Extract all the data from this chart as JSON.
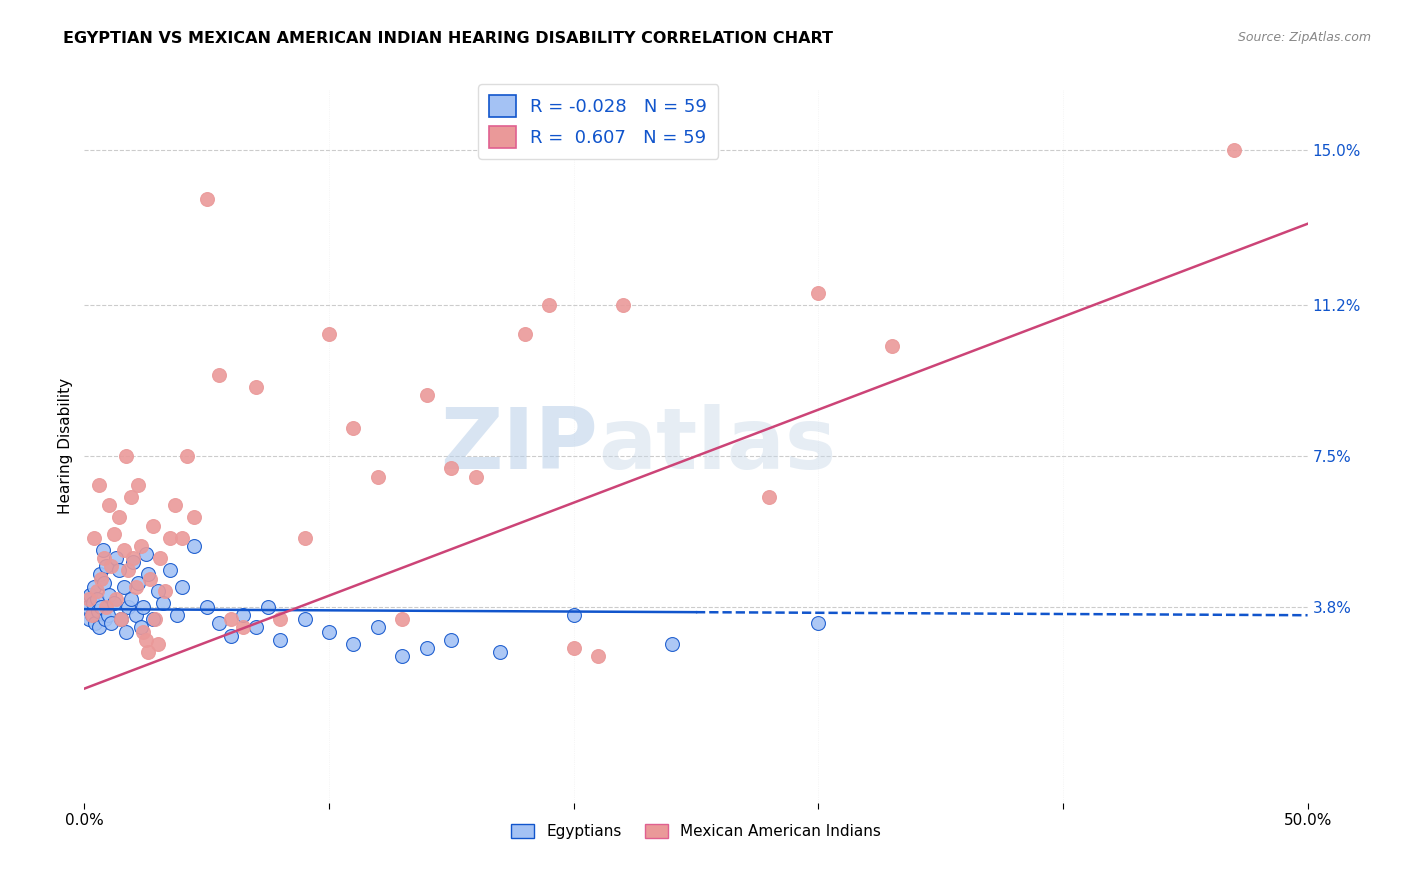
{
  "title": "EGYPTIAN VS MEXICAN AMERICAN INDIAN HEARING DISABILITY CORRELATION CHART",
  "source": "Source: ZipAtlas.com",
  "ylabel": "Hearing Disability",
  "ytick_labels": [
    "3.8%",
    "7.5%",
    "11.2%",
    "15.0%"
  ],
  "ytick_values": [
    3.8,
    7.5,
    11.2,
    15.0
  ],
  "xlim": [
    0.0,
    50.0
  ],
  "ylim": [
    -1.0,
    16.5
  ],
  "egyptian_color": "#a4c2f4",
  "mexican_color": "#ea9999",
  "egyptian_line_color": "#1155cc",
  "mexican_line_color": "#cc4477",
  "legend_R_egyptian": "-0.028",
  "legend_R_mexican": " 0.607",
  "legend_N": "59",
  "watermark_part1": "ZIP",
  "watermark_part2": "atlas",
  "eg_line_x0": 0.0,
  "eg_line_x_solid_end": 25.0,
  "eg_line_x1": 50.0,
  "eg_line_y0": 3.75,
  "eg_line_y1": 3.6,
  "mx_line_x0": 0.0,
  "mx_line_x1": 50.0,
  "mx_line_y0": 1.8,
  "mx_line_y1": 13.2,
  "egyptian_scatter": [
    [
      0.15,
      3.8
    ],
    [
      0.2,
      3.5
    ],
    [
      0.25,
      4.1
    ],
    [
      0.3,
      3.6
    ],
    [
      0.35,
      3.9
    ],
    [
      0.4,
      4.3
    ],
    [
      0.45,
      3.4
    ],
    [
      0.5,
      4.0
    ],
    [
      0.55,
      3.7
    ],
    [
      0.6,
      3.3
    ],
    [
      0.65,
      4.6
    ],
    [
      0.7,
      3.8
    ],
    [
      0.75,
      5.2
    ],
    [
      0.8,
      4.4
    ],
    [
      0.85,
      3.5
    ],
    [
      0.9,
      4.8
    ],
    [
      0.95,
      3.6
    ],
    [
      1.0,
      4.1
    ],
    [
      1.1,
      3.4
    ],
    [
      1.2,
      3.9
    ],
    [
      1.3,
      5.0
    ],
    [
      1.4,
      4.7
    ],
    [
      1.5,
      3.5
    ],
    [
      1.6,
      4.3
    ],
    [
      1.7,
      3.2
    ],
    [
      1.8,
      3.8
    ],
    [
      1.9,
      4.0
    ],
    [
      2.0,
      4.9
    ],
    [
      2.1,
      3.6
    ],
    [
      2.2,
      4.4
    ],
    [
      2.3,
      3.3
    ],
    [
      2.4,
      3.8
    ],
    [
      2.5,
      5.1
    ],
    [
      2.6,
      4.6
    ],
    [
      2.8,
      3.5
    ],
    [
      3.0,
      4.2
    ],
    [
      3.2,
      3.9
    ],
    [
      3.5,
      4.7
    ],
    [
      3.8,
      3.6
    ],
    [
      4.0,
      4.3
    ],
    [
      4.5,
      5.3
    ],
    [
      5.0,
      3.8
    ],
    [
      5.5,
      3.4
    ],
    [
      6.0,
      3.1
    ],
    [
      6.5,
      3.6
    ],
    [
      7.0,
      3.3
    ],
    [
      7.5,
      3.8
    ],
    [
      8.0,
      3.0
    ],
    [
      9.0,
      3.5
    ],
    [
      10.0,
      3.2
    ],
    [
      11.0,
      2.9
    ],
    [
      12.0,
      3.3
    ],
    [
      13.0,
      2.6
    ],
    [
      14.0,
      2.8
    ],
    [
      15.0,
      3.0
    ],
    [
      17.0,
      2.7
    ],
    [
      20.0,
      3.6
    ],
    [
      24.0,
      2.9
    ],
    [
      30.0,
      3.4
    ]
  ],
  "mexican_scatter": [
    [
      0.2,
      4.0
    ],
    [
      0.3,
      3.6
    ],
    [
      0.4,
      5.5
    ],
    [
      0.5,
      4.2
    ],
    [
      0.6,
      6.8
    ],
    [
      0.7,
      4.5
    ],
    [
      0.8,
      5.0
    ],
    [
      0.9,
      3.8
    ],
    [
      1.0,
      6.3
    ],
    [
      1.1,
      4.8
    ],
    [
      1.2,
      5.6
    ],
    [
      1.3,
      4.0
    ],
    [
      1.4,
      6.0
    ],
    [
      1.5,
      3.5
    ],
    [
      1.6,
      5.2
    ],
    [
      1.7,
      7.5
    ],
    [
      1.8,
      4.7
    ],
    [
      1.9,
      6.5
    ],
    [
      2.0,
      5.0
    ],
    [
      2.1,
      4.3
    ],
    [
      2.2,
      6.8
    ],
    [
      2.3,
      5.3
    ],
    [
      2.4,
      3.2
    ],
    [
      2.5,
      3.0
    ],
    [
      2.6,
      2.7
    ],
    [
      2.7,
      4.5
    ],
    [
      2.8,
      5.8
    ],
    [
      2.9,
      3.5
    ],
    [
      3.0,
      2.9
    ],
    [
      3.1,
      5.0
    ],
    [
      3.3,
      4.2
    ],
    [
      3.5,
      5.5
    ],
    [
      3.7,
      6.3
    ],
    [
      4.0,
      5.5
    ],
    [
      4.2,
      7.5
    ],
    [
      4.5,
      6.0
    ],
    [
      5.0,
      13.8
    ],
    [
      5.5,
      9.5
    ],
    [
      6.0,
      3.5
    ],
    [
      6.5,
      3.3
    ],
    [
      7.0,
      9.2
    ],
    [
      8.0,
      3.5
    ],
    [
      9.0,
      5.5
    ],
    [
      10.0,
      10.5
    ],
    [
      11.0,
      8.2
    ],
    [
      12.0,
      7.0
    ],
    [
      13.0,
      3.5
    ],
    [
      14.0,
      9.0
    ],
    [
      15.0,
      7.2
    ],
    [
      16.0,
      7.0
    ],
    [
      18.0,
      10.5
    ],
    [
      19.0,
      11.2
    ],
    [
      20.0,
      2.8
    ],
    [
      21.0,
      2.6
    ],
    [
      22.0,
      11.2
    ],
    [
      28.0,
      6.5
    ],
    [
      30.0,
      11.5
    ],
    [
      33.0,
      10.2
    ],
    [
      47.0,
      15.0
    ]
  ]
}
